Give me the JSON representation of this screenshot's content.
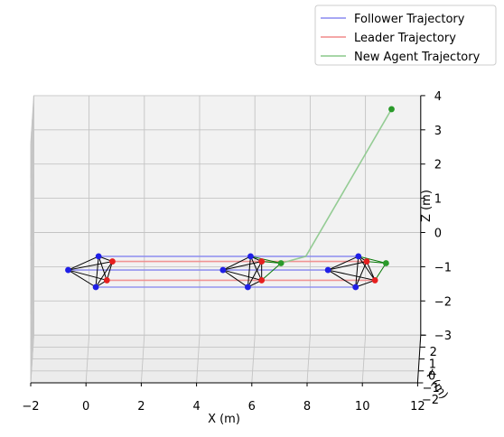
{
  "chart_data": {
    "type": "scatter",
    "projection": "3d",
    "title": "",
    "xlabel": "X (m)",
    "ylabel": "Y (m)",
    "zlabel": "Z (m)",
    "xlim": [
      -2,
      12
    ],
    "ylim": [
      -2,
      2
    ],
    "zlim": [
      -3,
      4
    ],
    "x_ticks": [
      "−2",
      "0",
      "2",
      "4",
      "6",
      "8",
      "10",
      "12"
    ],
    "y_ticks": [
      "−2",
      "−1",
      "0",
      "1",
      "2"
    ],
    "z_ticks": [
      "−3",
      "−2",
      "−1",
      "0",
      "1",
      "2",
      "3",
      "4"
    ],
    "grid": true,
    "legend_position": "top-right",
    "legend": [
      {
        "label": "Follower Trajectory",
        "color": "#8a8af0"
      },
      {
        "label": "Leader Trajectory",
        "color": "#f08a8a"
      },
      {
        "label": "New Agent Trajectory",
        "color": "#8ac88a"
      }
    ],
    "colors": {
      "follower": "#1f1fe6",
      "leader": "#e61f1f",
      "new_agent": "#2a9a2a",
      "follower_line": "#8a8af0",
      "leader_line": "#f08a8a",
      "new_agent_line": "#8ac88a",
      "edges": "#000000",
      "new_agent_edges": "#0a7a0a"
    },
    "snapshots": [
      {
        "followers": [
          [
            0.4,
            0.0,
            0
          ],
          [
            -0.7,
            0.0,
            -0.4
          ],
          [
            0.3,
            0.0,
            -0.9
          ]
        ],
        "leaders": [
          [
            0.9,
            0.0,
            -0.15
          ],
          [
            0.7,
            0.0,
            -0.7
          ]
        ],
        "new_agent": null
      },
      {
        "followers": [
          [
            5.9,
            0.0,
            0
          ],
          [
            4.9,
            0.0,
            -0.4
          ],
          [
            5.8,
            0.0,
            -0.9
          ]
        ],
        "leaders": [
          [
            6.3,
            0.0,
            -0.15
          ],
          [
            6.3,
            0.0,
            -0.7
          ]
        ],
        "new_agent": [
          7.0,
          0.0,
          -0.2
        ]
      },
      {
        "followers": [
          [
            9.8,
            0.0,
            0
          ],
          [
            8.7,
            0.0,
            -0.4
          ],
          [
            9.7,
            0.0,
            -0.9
          ]
        ],
        "leaders": [
          [
            10.1,
            0.0,
            -0.15
          ],
          [
            10.4,
            0.0,
            -0.7
          ]
        ],
        "new_agent": [
          10.8,
          0.0,
          -0.2
        ]
      }
    ],
    "trajectories": {
      "follower": [
        [
          [
            0.4,
            0.0,
            0
          ],
          [
            9.8,
            0.0,
            0
          ]
        ],
        [
          [
            -0.7,
            0.0,
            -0.4
          ],
          [
            8.7,
            0.0,
            -0.4
          ]
        ],
        [
          [
            0.3,
            0.0,
            -0.9
          ],
          [
            9.7,
            0.0,
            -0.9
          ]
        ]
      ],
      "leader": [
        [
          [
            0.9,
            0.0,
            -0.15
          ],
          [
            10.1,
            0.0,
            -0.15
          ]
        ],
        [
          [
            0.7,
            0.0,
            -0.7
          ],
          [
            10.4,
            0.0,
            -0.7
          ]
        ]
      ],
      "new_agent": [
        [
          7.0,
          0.0,
          -0.2
        ],
        [
          7.9,
          0.0,
          0
        ],
        [
          11.0,
          0.0,
          4.3
        ]
      ]
    },
    "new_agent_start": [
      11.0,
      0.0,
      4.3
    ]
  }
}
